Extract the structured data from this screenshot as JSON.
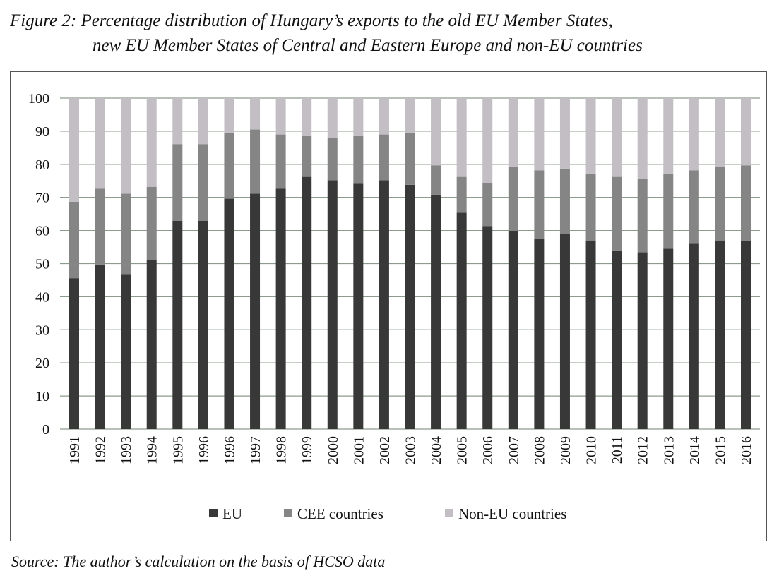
{
  "title_line1": "Figure 2: Percentage distribution of Hungary’s exports to the old EU Member States,",
  "title_line2": "new EU Member States of Central and Eastern Europe and non-EU countries",
  "source": "Source: The author’s calculation on the basis of HCSO data",
  "chart_data": {
    "type": "bar",
    "stacked": true,
    "title": "Figure 2: Percentage distribution of Hungary’s exports to the old EU Member States, new EU Member States of Central and Eastern Europe and non-EU countries",
    "xlabel": "",
    "ylabel": "",
    "ylim": [
      0,
      100
    ],
    "yticks": [
      "0",
      "10",
      "20",
      "30",
      "40",
      "50",
      "60",
      "70",
      "80",
      "90",
      "100"
    ],
    "grid": true,
    "legend_position": "bottom",
    "categories": [
      "1991",
      "1992",
      "1993",
      "1994",
      "1995",
      "1996",
      "1996",
      "1997",
      "1998",
      "1999",
      "2000",
      "2001",
      "2002",
      "2003",
      "2004",
      "2005",
      "2006",
      "2007",
      "2008",
      "2009",
      "2010",
      "2011",
      "2012",
      "2013",
      "2014",
      "2015",
      "2016"
    ],
    "series": [
      {
        "name": "EU",
        "color": "#383838",
        "values": [
          45.6,
          49.7,
          46.8,
          51.1,
          62.9,
          62.9,
          69.6,
          71.1,
          72.6,
          76.2,
          75.2,
          74.1,
          75.2,
          73.8,
          70.8,
          65.4,
          61.3,
          59.8,
          57.4,
          58.9,
          56.8,
          54.0,
          53.4,
          54.5,
          56.0,
          56.8,
          56.8
        ]
      },
      {
        "name": "CEE countries",
        "color": "#858585",
        "values": [
          23.1,
          22.9,
          24.3,
          22.1,
          23.2,
          23.2,
          19.8,
          19.4,
          16.4,
          12.3,
          12.8,
          14.4,
          13.8,
          15.6,
          8.9,
          10.8,
          12.9,
          19.4,
          20.8,
          19.8,
          20.4,
          22.2,
          22.1,
          22.7,
          22.2,
          22.4,
          22.9
        ]
      },
      {
        "name": "Non-EU countries",
        "color": "#c2bec4",
        "values": [
          31.3,
          27.4,
          28.9,
          26.8,
          13.9,
          13.9,
          10.6,
          9.5,
          11.0,
          11.5,
          12.0,
          11.5,
          11.0,
          10.6,
          20.3,
          23.8,
          25.8,
          20.8,
          21.8,
          21.3,
          22.8,
          23.8,
          24.5,
          22.8,
          21.8,
          20.8,
          20.3
        ]
      }
    ]
  }
}
